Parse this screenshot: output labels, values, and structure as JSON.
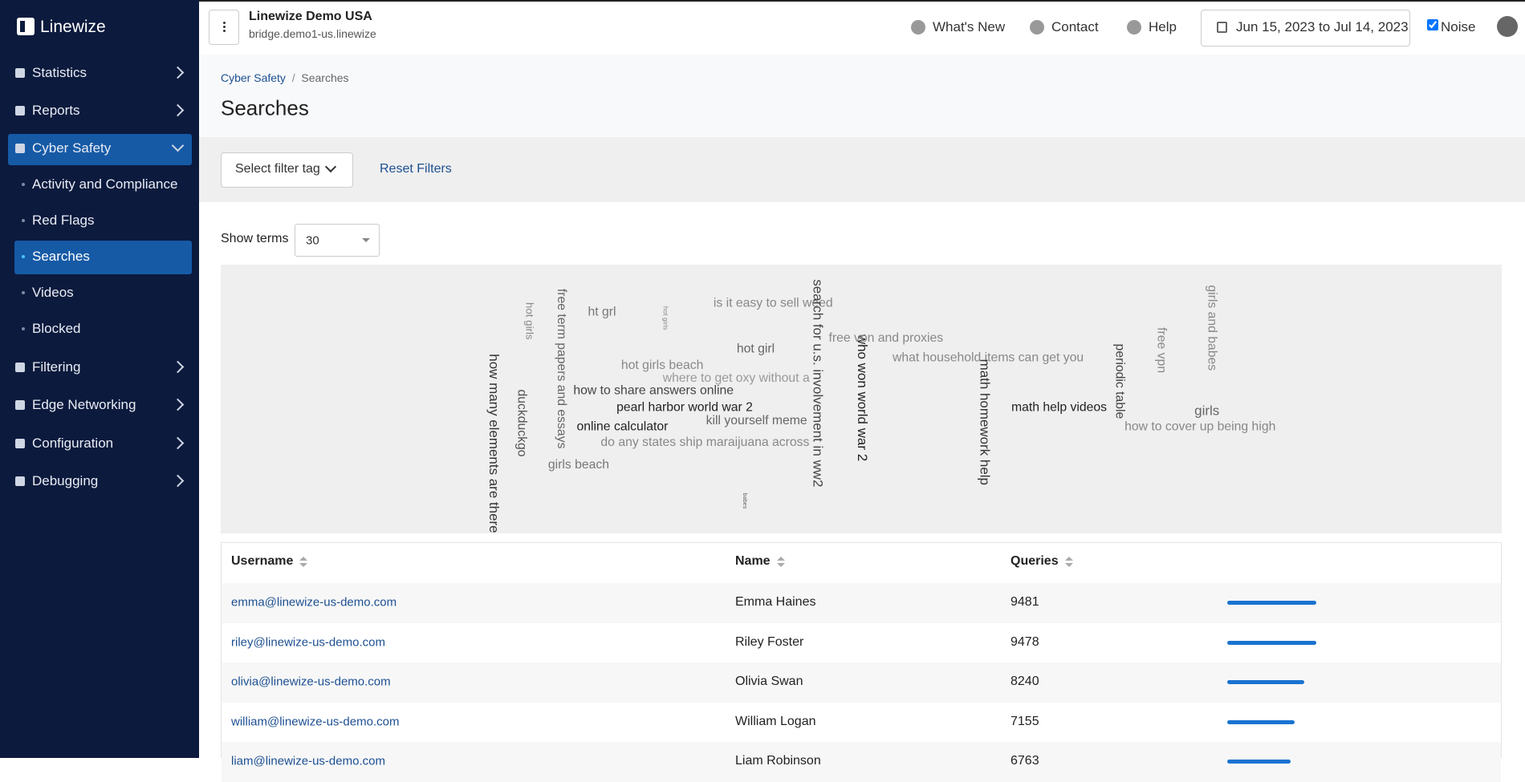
{
  "brand": "Linewize",
  "sidebar": {
    "items": [
      "Statistics",
      "Reports",
      "Cyber Safety",
      "Activity and Compliance",
      "Red Flags",
      "Searches",
      "Videos",
      "Blocked",
      "Filtering",
      "Edge Networking",
      "Configuration",
      "Debugging"
    ]
  },
  "topbar": {
    "org": "Linewize Demo USA",
    "host": "bridge.demo1-us.linewize",
    "links": [
      "What's New",
      "Contact",
      "Help"
    ],
    "date_range": "Jun 15, 2023 to Jul 14, 2023",
    "noise": "Noise"
  },
  "breadcrumb": [
    "Cyber Safety",
    "Searches"
  ],
  "title": "Searches",
  "filters": {
    "select": "Select filter tag",
    "reset": "Reset Filters"
  },
  "show_terms": {
    "label": "Show terms",
    "value": "30"
  },
  "word_cloud": [
    "how many elements are there",
    "duckduckgo",
    "hot girls",
    "free term papers and essays",
    "ht grl",
    "hot girls",
    "is it easy to sell weed",
    "hot girl",
    "hot girls beach",
    "where to get oxy without a",
    "how to share answers online",
    "pearl harbor world war 2",
    "online calculator",
    "kill yourself meme",
    "do any states ship maraijuana across",
    "girls beach",
    "babes",
    "search for u.s. involvement in ww2",
    "who won world war 2",
    "free vpn and proxies",
    "what household items can get you",
    "math homework help",
    "math help videos",
    "periodic table",
    "free vpn",
    "girls and babes",
    "girls",
    "how to cover up being high"
  ],
  "table": {
    "columns": [
      "Username",
      "Name",
      "Queries"
    ],
    "rows": [
      [
        "emma@linewize-us-demo.com",
        "Emma Haines",
        9481
      ],
      [
        "riley@linewize-us-demo.com",
        "Riley Foster",
        9478
      ],
      [
        "olivia@linewize-us-demo.com",
        "Olivia Swan",
        8240
      ],
      [
        "william@linewize-us-demo.com",
        "William Logan",
        7155
      ],
      [
        "liam@linewize-us-demo.com",
        "Liam Robinson",
        6763
      ]
    ]
  }
}
